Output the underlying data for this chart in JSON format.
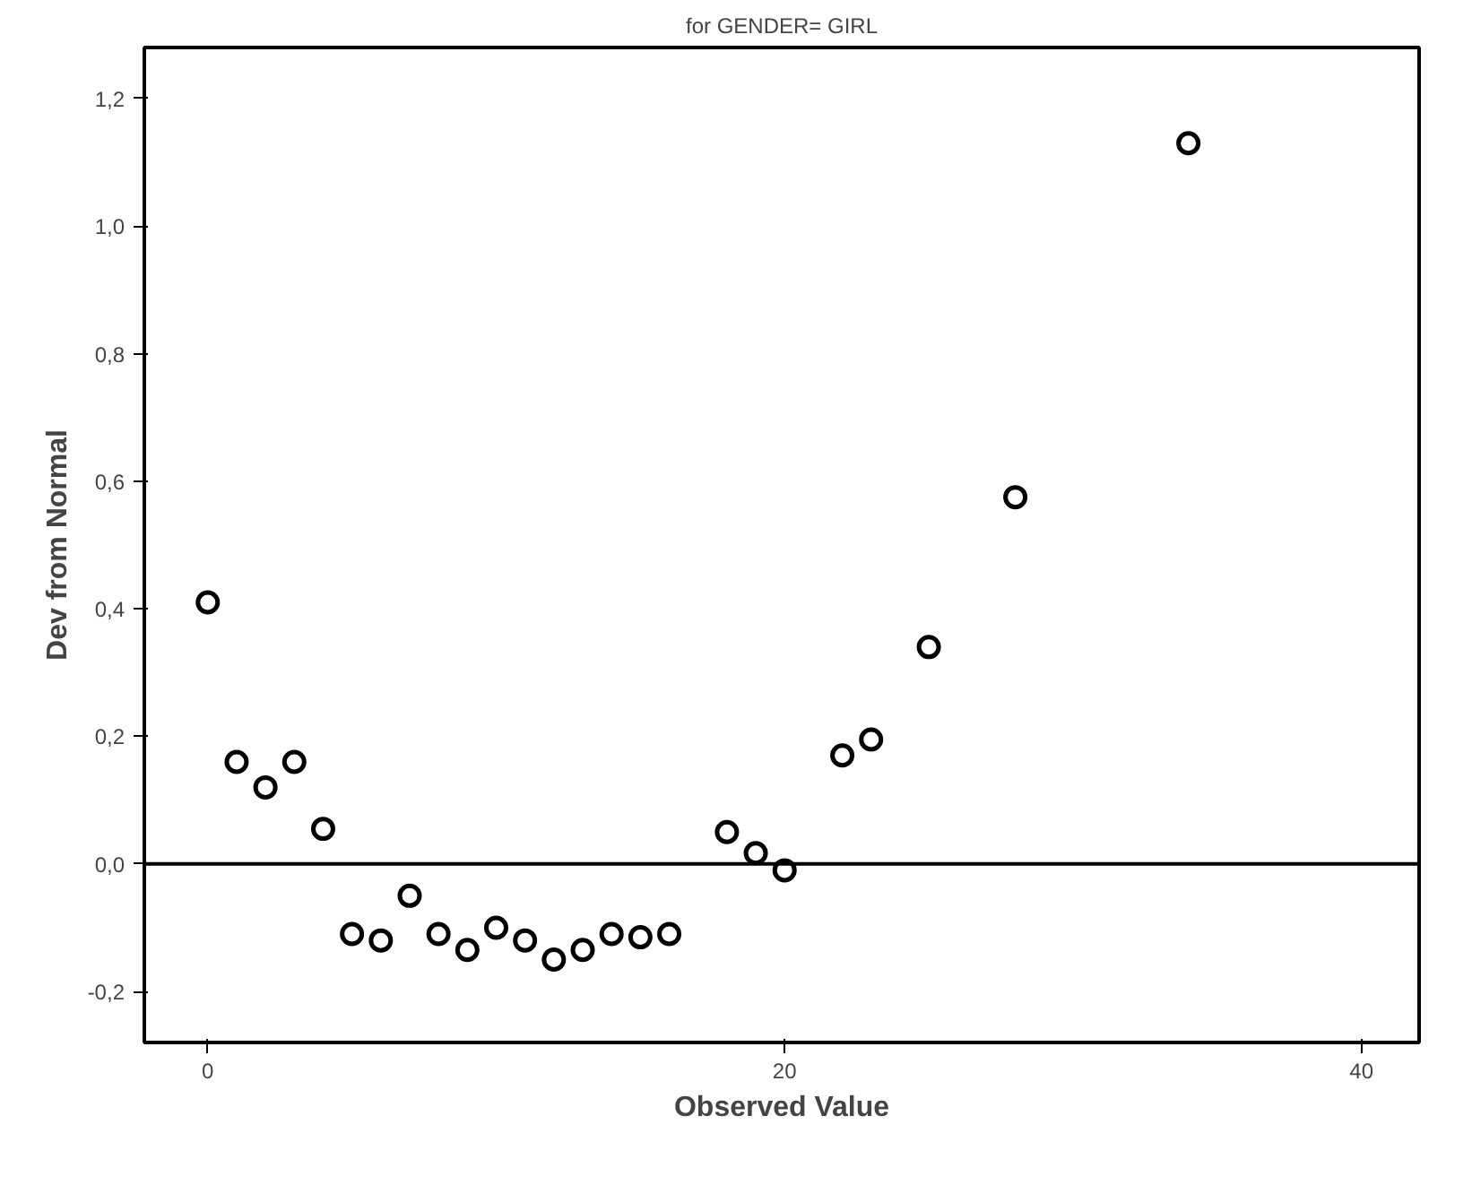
{
  "chart_data": {
    "type": "scatter",
    "title": "for GENDER= GIRL",
    "xlabel": "Observed Value",
    "ylabel": "Dev from Normal",
    "x": [
      0,
      1,
      2,
      3,
      4,
      5,
      6,
      7,
      8,
      9,
      10,
      11,
      12,
      13,
      14,
      15,
      16,
      18,
      19,
      20,
      22,
      23,
      25,
      28,
      34
    ],
    "series": [
      {
        "color": "#000000",
        "values": [
          0.41,
          0.16,
          0.12,
          0.16,
          0.055,
          -0.11,
          -0.12,
          -0.05,
          -0.11,
          -0.135,
          -0.1,
          -0.12,
          -0.15,
          -0.135,
          -0.11,
          -0.115,
          -0.11,
          0.05,
          0.017,
          -0.01,
          0.17,
          0.195,
          0.34,
          0.575,
          1.13
        ]
      }
    ],
    "xlim": [
      -2.2,
      42
    ],
    "ylim": [
      -0.28,
      1.28
    ],
    "xticks": [
      0,
      20,
      40
    ],
    "yticks": [
      {
        "value": -0.2,
        "label": "-0,2"
      },
      {
        "value": 0,
        "label": "0,0"
      },
      {
        "value": 0.2,
        "label": "0,2"
      },
      {
        "value": 0.4,
        "label": "0,4"
      },
      {
        "value": 0.6,
        "label": "0,6"
      },
      {
        "value": 0.8,
        "label": "0,8"
      },
      {
        "value": 1.0,
        "label": "1,0"
      },
      {
        "value": 1.2,
        "label": "1,2"
      }
    ],
    "ref_lines": [
      {
        "axis": "y",
        "value": 0,
        "color": "#000000"
      }
    ],
    "marker": "circle",
    "grid": false
  }
}
